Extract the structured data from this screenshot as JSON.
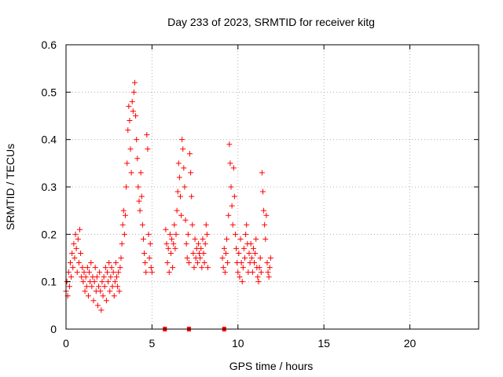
{
  "chart_data": {
    "type": "scatter",
    "title": "Day 233 of 2023, SRMTID for receiver kitg",
    "xlabel": "GPS time / hours",
    "ylabel": "SRMTID / TECUs",
    "xlim": [
      0,
      24
    ],
    "ylim": [
      0,
      0.6
    ],
    "xticks": [
      0,
      5,
      10,
      15,
      20
    ],
    "yticks": [
      0,
      0.1,
      0.2,
      0.3,
      0.4,
      0.5,
      0.6
    ],
    "x_tick_labels": [
      "0",
      "5",
      "10",
      "15",
      "20"
    ],
    "y_tick_labels": [
      "0",
      "0.1",
      "0.2",
      "0.3",
      "0.4",
      "0.5",
      "0.6"
    ],
    "grid": true,
    "marker": "+",
    "series": [
      {
        "name": "kitg",
        "color": "#ff0000",
        "points": [
          [
            0.0,
            0.08
          ],
          [
            0.05,
            0.1
          ],
          [
            0.1,
            0.07
          ],
          [
            0.15,
            0.12
          ],
          [
            0.2,
            0.09
          ],
          [
            0.25,
            0.14
          ],
          [
            0.3,
            0.11
          ],
          [
            0.35,
            0.16
          ],
          [
            0.4,
            0.13
          ],
          [
            0.45,
            0.18
          ],
          [
            0.5,
            0.15
          ],
          [
            0.55,
            0.2
          ],
          [
            0.6,
            0.17
          ],
          [
            0.65,
            0.12
          ],
          [
            0.7,
            0.19
          ],
          [
            0.75,
            0.14
          ],
          [
            0.8,
            0.21
          ],
          [
            0.85,
            0.16
          ],
          [
            0.9,
            0.11
          ],
          [
            0.95,
            0.13
          ],
          [
            1.0,
            0.1
          ],
          [
            1.05,
            0.12
          ],
          [
            1.1,
            0.08
          ],
          [
            1.15,
            0.11
          ],
          [
            1.2,
            0.09
          ],
          [
            1.25,
            0.13
          ],
          [
            1.3,
            0.07
          ],
          [
            1.35,
            0.12
          ],
          [
            1.4,
            0.1
          ],
          [
            1.45,
            0.14
          ],
          [
            1.5,
            0.09
          ],
          [
            1.55,
            0.11
          ],
          [
            1.6,
            0.06
          ],
          [
            1.65,
            0.1
          ],
          [
            1.7,
            0.13
          ],
          [
            1.75,
            0.08
          ],
          [
            1.8,
            0.11
          ],
          [
            1.85,
            0.05
          ],
          [
            1.9,
            0.09
          ],
          [
            1.95,
            0.12
          ],
          [
            2.0,
            0.08
          ],
          [
            2.05,
            0.04
          ],
          [
            2.1,
            0.1
          ],
          [
            2.15,
            0.07
          ],
          [
            2.2,
            0.11
          ],
          [
            2.25,
            0.09
          ],
          [
            2.3,
            0.13
          ],
          [
            2.35,
            0.06
          ],
          [
            2.4,
            0.12
          ],
          [
            2.45,
            0.1
          ],
          [
            2.5,
            0.14
          ],
          [
            2.55,
            0.08
          ],
          [
            2.6,
            0.11
          ],
          [
            2.65,
            0.13
          ],
          [
            2.7,
            0.09
          ],
          [
            2.75,
            0.12
          ],
          [
            2.8,
            0.07
          ],
          [
            2.85,
            0.1
          ],
          [
            2.9,
            0.14
          ],
          [
            2.95,
            0.11
          ],
          [
            3.0,
            0.09
          ],
          [
            3.05,
            0.12
          ],
          [
            3.1,
            0.08
          ],
          [
            3.15,
            0.13
          ],
          [
            3.2,
            0.15
          ],
          [
            3.25,
            0.18
          ],
          [
            3.3,
            0.22
          ],
          [
            3.35,
            0.25
          ],
          [
            3.4,
            0.2
          ],
          [
            3.45,
            0.24
          ],
          [
            3.5,
            0.3
          ],
          [
            3.55,
            0.35
          ],
          [
            3.6,
            0.42
          ],
          [
            3.65,
            0.47
          ],
          [
            3.7,
            0.44
          ],
          [
            3.75,
            0.38
          ],
          [
            3.8,
            0.33
          ],
          [
            3.85,
            0.48
          ],
          [
            3.9,
            0.46
          ],
          [
            3.95,
            0.5
          ],
          [
            4.0,
            0.52
          ],
          [
            4.05,
            0.45
          ],
          [
            4.1,
            0.4
          ],
          [
            4.15,
            0.36
          ],
          [
            4.2,
            0.3
          ],
          [
            4.25,
            0.27
          ],
          [
            4.3,
            0.25
          ],
          [
            4.35,
            0.33
          ],
          [
            4.4,
            0.28
          ],
          [
            4.45,
            0.22
          ],
          [
            4.5,
            0.19
          ],
          [
            4.55,
            0.16
          ],
          [
            4.6,
            0.14
          ],
          [
            4.65,
            0.12
          ],
          [
            4.7,
            0.41
          ],
          [
            4.75,
            0.38
          ],
          [
            4.8,
            0.2
          ],
          [
            4.85,
            0.15
          ],
          [
            4.9,
            0.18
          ],
          [
            4.95,
            0.13
          ],
          [
            5.0,
            0.12
          ],
          [
            5.8,
            0.21
          ],
          [
            5.85,
            0.18
          ],
          [
            5.9,
            0.14
          ],
          [
            5.95,
            0.17
          ],
          [
            6.0,
            0.12
          ],
          [
            6.05,
            0.2
          ],
          [
            6.1,
            0.16
          ],
          [
            6.15,
            0.19
          ],
          [
            6.2,
            0.13
          ],
          [
            6.25,
            0.18
          ],
          [
            6.3,
            0.22
          ],
          [
            6.35,
            0.17
          ],
          [
            6.4,
            0.2
          ],
          [
            6.45,
            0.25
          ],
          [
            6.5,
            0.29
          ],
          [
            6.55,
            0.35
          ],
          [
            6.6,
            0.32
          ],
          [
            6.65,
            0.28
          ],
          [
            6.7,
            0.24
          ],
          [
            6.75,
            0.4
          ],
          [
            6.8,
            0.38
          ],
          [
            6.85,
            0.34
          ],
          [
            6.9,
            0.3
          ],
          [
            6.95,
            0.23
          ],
          [
            7.0,
            0.18
          ],
          [
            7.05,
            0.15
          ],
          [
            7.1,
            0.2
          ],
          [
            7.15,
            0.14
          ],
          [
            7.2,
            0.37
          ],
          [
            7.25,
            0.33
          ],
          [
            7.3,
            0.28
          ],
          [
            7.35,
            0.22
          ],
          [
            7.4,
            0.16
          ],
          [
            7.45,
            0.13
          ],
          [
            7.5,
            0.19
          ],
          [
            7.55,
            0.15
          ],
          [
            7.6,
            0.17
          ],
          [
            7.65,
            0.14
          ],
          [
            7.7,
            0.18
          ],
          [
            7.75,
            0.16
          ],
          [
            7.8,
            0.15
          ],
          [
            7.85,
            0.17
          ],
          [
            7.9,
            0.13
          ],
          [
            7.95,
            0.19
          ],
          [
            8.0,
            0.16
          ],
          [
            8.05,
            0.14
          ],
          [
            8.1,
            0.18
          ],
          [
            8.15,
            0.22
          ],
          [
            8.2,
            0.2
          ],
          [
            8.25,
            0.13
          ],
          [
            9.1,
            0.15
          ],
          [
            9.15,
            0.13
          ],
          [
            9.2,
            0.17
          ],
          [
            9.25,
            0.12
          ],
          [
            9.3,
            0.16
          ],
          [
            9.35,
            0.19
          ],
          [
            9.4,
            0.14
          ],
          [
            9.45,
            0.24
          ],
          [
            9.5,
            0.39
          ],
          [
            9.55,
            0.35
          ],
          [
            9.6,
            0.3
          ],
          [
            9.65,
            0.26
          ],
          [
            9.7,
            0.22
          ],
          [
            9.75,
            0.34
          ],
          [
            9.8,
            0.28
          ],
          [
            9.85,
            0.2
          ],
          [
            9.9,
            0.17
          ],
          [
            9.95,
            0.14
          ],
          [
            10.0,
            0.12
          ],
          [
            10.05,
            0.16
          ],
          [
            10.1,
            0.11
          ],
          [
            10.15,
            0.19
          ],
          [
            10.2,
            0.14
          ],
          [
            10.25,
            0.1
          ],
          [
            10.3,
            0.13
          ],
          [
            10.35,
            0.17
          ],
          [
            10.4,
            0.15
          ],
          [
            10.45,
            0.2
          ],
          [
            10.5,
            0.22
          ],
          [
            10.55,
            0.18
          ],
          [
            10.6,
            0.12
          ],
          [
            10.65,
            0.16
          ],
          [
            10.7,
            0.14
          ],
          [
            10.75,
            0.18
          ],
          [
            10.8,
            0.15
          ],
          [
            10.85,
            0.12
          ],
          [
            10.9,
            0.17
          ],
          [
            10.95,
            0.14
          ],
          [
            11.0,
            0.16
          ],
          [
            11.05,
            0.19
          ],
          [
            11.1,
            0.13
          ],
          [
            11.15,
            0.11
          ],
          [
            11.2,
            0.1
          ],
          [
            11.25,
            0.13
          ],
          [
            11.3,
            0.15
          ],
          [
            11.35,
            0.12
          ],
          [
            11.4,
            0.33
          ],
          [
            11.45,
            0.29
          ],
          [
            11.5,
            0.25
          ],
          [
            11.55,
            0.22
          ],
          [
            11.6,
            0.19
          ],
          [
            11.65,
            0.24
          ],
          [
            11.7,
            0.14
          ],
          [
            11.75,
            0.12
          ],
          [
            11.8,
            0.11
          ],
          [
            11.85,
            0.13
          ],
          [
            11.9,
            0.15
          ]
        ]
      }
    ],
    "marker_bar_points": [
      5.75,
      7.15,
      9.2
    ]
  }
}
